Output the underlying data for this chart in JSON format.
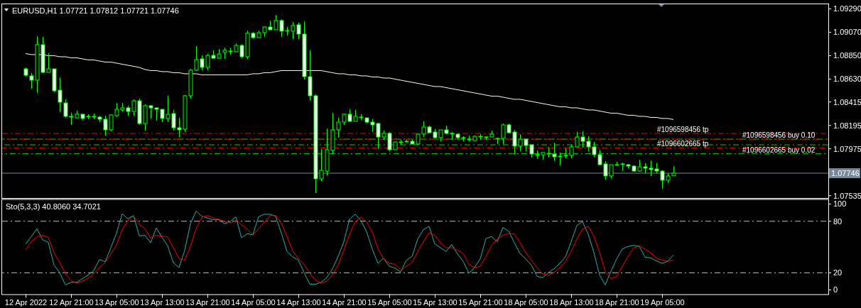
{
  "chart_data": [
    {
      "type": "candlestick",
      "title": "EURUSD,H1 1.07721 1.07812 1.07721 1.07746",
      "color": "#00ff00",
      "categories": [
        null,
        null,
        null,
        null,
        null,
        null,
        null,
        null,
        null,
        null,
        null,
        null,
        null,
        null,
        null,
        null,
        null,
        null,
        null,
        null,
        null,
        null,
        null,
        null,
        null,
        null,
        null,
        null,
        null,
        null,
        null,
        null,
        null,
        null,
        null,
        null,
        null,
        null,
        null,
        null,
        null,
        null,
        null,
        null,
        null,
        null,
        null,
        null,
        null,
        null,
        null,
        null,
        null,
        null,
        null,
        null,
        null,
        null,
        null,
        null,
        null,
        null,
        null,
        null,
        null,
        null,
        null,
        null,
        null,
        null,
        null,
        null,
        null,
        null,
        null,
        null,
        null,
        null,
        null,
        null,
        null,
        null,
        null,
        null,
        null,
        null,
        null,
        null,
        null,
        null,
        null,
        null,
        null,
        null,
        null,
        null,
        null,
        null,
        null,
        null,
        null,
        null,
        null,
        null,
        null,
        null,
        null,
        null,
        null,
        null,
        null,
        null,
        null,
        null,
        null
      ],
      "ohlc": [
        [
          1.08726,
          1.0874,
          1.08653,
          1.08666
        ],
        [
          1.0866,
          1.08686,
          1.0854,
          1.0862
        ],
        [
          1.0862,
          1.09033,
          1.085,
          1.08953
        ],
        [
          1.08953,
          1.09026,
          1.08686,
          1.08693
        ],
        [
          1.08693,
          1.08873,
          1.08693,
          1.08726
        ],
        [
          1.08726,
          1.08726,
          1.08506,
          1.0852
        ],
        [
          1.08526,
          1.08646,
          1.0832,
          1.08413
        ],
        [
          1.08406,
          1.0844,
          1.08266,
          1.0828
        ],
        [
          1.0828,
          1.08313,
          1.082,
          1.08273
        ],
        [
          1.08266,
          1.08333,
          1.08266,
          1.083
        ],
        [
          1.083,
          1.083,
          1.0824,
          1.0826
        ],
        [
          1.0828,
          1.083,
          1.08253,
          1.0828
        ],
        [
          1.0828,
          1.08306,
          1.08253,
          1.0828
        ],
        [
          1.08273,
          1.08286,
          1.08226,
          1.08253
        ],
        [
          1.08253,
          1.08286,
          1.081,
          1.08153
        ],
        [
          1.08153,
          1.083,
          1.0814,
          1.08293
        ],
        [
          1.08286,
          1.08406,
          1.08273,
          1.08346
        ],
        [
          1.0834,
          1.08406,
          1.08326,
          1.0836
        ],
        [
          1.0836,
          1.0838,
          1.08286,
          1.08326
        ],
        [
          1.08326,
          1.0844,
          1.08286,
          1.08426
        ],
        [
          1.08426,
          1.08446,
          1.082,
          1.08213
        ],
        [
          1.08213,
          1.08393,
          1.08146,
          1.0838
        ],
        [
          1.0838,
          1.08386,
          1.0826,
          1.0836
        ],
        [
          1.0836,
          1.0836,
          1.0824,
          1.08346
        ],
        [
          1.08346,
          1.08346,
          1.08226,
          1.0826
        ],
        [
          1.0826,
          1.08473,
          1.08226,
          1.083
        ],
        [
          1.08306,
          1.0834,
          1.08146,
          1.08173
        ],
        [
          1.08173,
          1.08266,
          1.08086,
          1.08153
        ],
        [
          1.0816,
          1.0848,
          1.08133,
          1.08473
        ],
        [
          1.08473,
          1.08726,
          1.08446,
          1.08713
        ],
        [
          1.08713,
          1.0894,
          1.08706,
          1.08813
        ],
        [
          1.0882,
          1.08853,
          1.08713,
          1.0874
        ],
        [
          1.0874,
          1.08866,
          1.08713,
          1.08853
        ],
        [
          1.08853,
          1.089,
          1.08826,
          1.08826
        ],
        [
          1.08826,
          1.08913,
          1.0882,
          1.08866
        ],
        [
          1.0888,
          1.08926,
          1.0882,
          1.089
        ],
        [
          1.08893,
          1.08926,
          1.0886,
          1.08893
        ],
        [
          1.08886,
          1.08966,
          1.08886,
          1.08946
        ],
        [
          1.08946,
          1.0896,
          1.08826,
          1.0884
        ],
        [
          1.0884,
          1.09086,
          1.0882,
          1.0906
        ],
        [
          1.0906,
          1.09073,
          1.09006,
          1.0902
        ],
        [
          1.0902,
          1.09086,
          1.0902,
          1.09066
        ],
        [
          1.09066,
          1.09126,
          1.09026,
          1.0912
        ],
        [
          1.0912,
          1.0918,
          1.09093,
          1.09093
        ],
        [
          1.09093,
          1.09233,
          1.09093,
          1.0918
        ],
        [
          1.0918,
          1.09193,
          1.09026,
          1.0908
        ],
        [
          1.09086,
          1.0912,
          1.0904,
          1.09086
        ],
        [
          1.0908,
          1.09166,
          1.09006,
          1.09133
        ],
        [
          1.0914,
          1.0916,
          1.09006,
          1.09053
        ],
        [
          1.09053,
          1.09173,
          1.08626,
          1.08653
        ],
        [
          1.08653,
          1.089,
          1.08426,
          1.08473
        ],
        [
          1.08473,
          1.08486,
          1.0756,
          1.07693
        ],
        [
          1.07693,
          1.07973,
          1.07673,
          1.07773
        ],
        [
          1.07766,
          1.08166,
          1.07726,
          1.07966
        ],
        [
          1.0796,
          1.08313,
          1.07926,
          1.08153
        ],
        [
          1.08153,
          1.08266,
          1.0808,
          1.08226
        ],
        [
          1.08226,
          1.08306,
          1.082,
          1.083
        ],
        [
          1.083,
          1.08346,
          1.08226,
          1.08233
        ],
        [
          1.08233,
          1.0834,
          1.08233,
          1.0828
        ],
        [
          1.08273,
          1.083,
          1.08246,
          1.08273
        ],
        [
          1.08266,
          1.08266,
          1.08213,
          1.08226
        ],
        [
          1.08226,
          1.08253,
          1.08133,
          1.082
        ],
        [
          1.08213,
          1.0822,
          1.07973,
          1.08086
        ],
        [
          1.08086,
          1.08146,
          1.0806,
          1.0812
        ],
        [
          1.0812,
          1.08133,
          1.07953,
          1.07966
        ],
        [
          1.07966,
          1.0804,
          1.07966,
          1.0804
        ],
        [
          1.0804,
          1.0806,
          1.08013,
          1.0804
        ],
        [
          1.08046,
          1.0806,
          1.08033,
          1.08046
        ],
        [
          1.08046,
          1.0806,
          1.08013,
          1.0802
        ],
        [
          1.0802,
          1.0812,
          1.08013,
          1.08113
        ],
        [
          1.08113,
          1.08233,
          1.08086,
          1.0818
        ],
        [
          1.0818,
          1.08193,
          1.0812,
          1.08126
        ],
        [
          1.08133,
          1.0816,
          1.08073,
          1.0808
        ],
        [
          1.0808,
          1.08153,
          1.08046,
          1.08153
        ],
        [
          1.08153,
          1.08193,
          1.08113,
          1.0812
        ],
        [
          1.0812,
          1.08133,
          1.0806,
          1.0812
        ],
        [
          1.08113,
          1.0812,
          1.0806,
          1.0808
        ],
        [
          1.0808,
          1.08093,
          1.08046,
          1.0808
        ],
        [
          1.08066,
          1.081,
          1.08046,
          1.08066
        ],
        [
          1.08053,
          1.081,
          1.08053,
          1.08093
        ],
        [
          1.08093,
          1.08113,
          1.0806,
          1.08093
        ],
        [
          1.08086,
          1.08093,
          1.0806,
          1.08086
        ],
        [
          1.08086,
          1.08146,
          1.08086,
          1.08113
        ],
        [
          1.08073,
          1.0808,
          1.0802,
          1.08073
        ],
        [
          1.08073,
          1.08213,
          1.0802,
          1.082
        ],
        [
          1.082,
          1.08213,
          1.0812,
          1.08126
        ],
        [
          1.08133,
          1.08153,
          1.07926,
          1.08
        ],
        [
          1.08,
          1.08113,
          1.07953,
          1.08066
        ],
        [
          1.08066,
          1.08073,
          1.07953,
          1.08006
        ],
        [
          1.08013,
          1.08013,
          1.07893,
          1.07926
        ],
        [
          1.0792,
          1.0796,
          1.0788,
          1.0792
        ],
        [
          1.0792,
          1.0794,
          1.07873,
          1.0794
        ],
        [
          1.07933,
          1.07993,
          1.07893,
          1.07933
        ],
        [
          1.07926,
          1.08033,
          1.0786,
          1.079
        ],
        [
          1.07906,
          1.0794,
          1.0782,
          1.07906
        ],
        [
          1.07913,
          1.0798,
          1.07886,
          1.07913
        ],
        [
          1.07913,
          1.08013,
          1.07886,
          1.07993
        ],
        [
          1.07993,
          1.08133,
          1.07993,
          1.08086
        ],
        [
          1.08086,
          1.0814,
          1.07986,
          1.08046
        ],
        [
          1.08046,
          1.08093,
          1.07953,
          1.07993
        ],
        [
          1.07993,
          1.0804,
          1.079,
          1.0792
        ],
        [
          1.0792,
          1.07966,
          1.0782,
          1.07826
        ],
        [
          1.07833,
          1.0786,
          1.07686,
          1.0772
        ],
        [
          1.0772,
          1.07826,
          1.077,
          1.07826
        ],
        [
          1.07826,
          1.07853,
          1.0782,
          1.07826
        ],
        [
          1.07833,
          1.07846,
          1.07766,
          1.07833
        ],
        [
          1.07826,
          1.07833,
          1.07793,
          1.07813
        ],
        [
          1.07813,
          1.0782,
          1.0776,
          1.07766
        ],
        [
          1.07766,
          1.07873,
          1.0776,
          1.07806
        ],
        [
          1.07806,
          1.0784,
          1.07746,
          1.07793
        ],
        [
          1.07793,
          1.07866,
          1.0772,
          1.0778
        ],
        [
          1.07786,
          1.0784,
          1.07746,
          1.07766
        ],
        [
          1.07766,
          1.07773,
          1.076,
          1.0768
        ],
        [
          1.0768,
          1.07746,
          1.07653,
          1.0772
        ],
        [
          1.07721,
          1.07812,
          1.07721,
          1.07746
        ]
      ],
      "series": [
        {
          "type": "line",
          "color": "#fffde0",
          "values": [
            1.0887,
            1.0886,
            1.0886,
            1.0886,
            1.0885,
            1.0885,
            1.0884,
            1.0884,
            1.0883,
            1.0883,
            1.0882,
            1.0881,
            1.0881,
            1.088,
            1.0879,
            1.0879,
            1.0878,
            1.0877,
            1.0876,
            1.0875,
            1.0874,
            1.0872,
            1.0871,
            1.0871,
            1.087,
            1.087,
            1.0869,
            1.0869,
            1.0868,
            1.0868,
            1.0868,
            1.0867,
            1.0867,
            1.0867,
            1.0867,
            1.0867,
            1.0867,
            1.0867,
            1.0867,
            1.0867,
            1.0868,
            1.0868,
            1.0869,
            1.0869,
            1.087,
            1.0871,
            1.0871,
            1.0871,
            1.0871,
            1.0871,
            1.0871,
            1.0871,
            1.0871,
            1.087,
            1.0869,
            1.0868,
            1.0868,
            1.0867,
            1.0867,
            1.0866,
            1.0866,
            1.0865,
            1.0865,
            1.0864,
            1.0864,
            1.0863,
            1.0862,
            1.0861,
            1.086,
            1.0859,
            1.0858,
            1.0857,
            1.0856,
            1.0856,
            1.0855,
            1.0854,
            1.0853,
            1.0852,
            1.0851,
            1.085,
            1.0849,
            1.0848,
            1.0847,
            1.0847,
            1.0846,
            1.0845,
            1.0844,
            1.0844,
            1.0843,
            1.0842,
            1.0841,
            1.084,
            1.0839,
            1.0838,
            1.0837,
            1.0837,
            1.0836,
            1.0836,
            1.0835,
            1.0834,
            1.0834,
            1.0833,
            1.0832,
            1.0831,
            1.0831,
            1.083,
            1.0829,
            1.0829,
            1.0828,
            1.0828,
            1.0827,
            1.0827,
            1.0826,
            1.0826,
            1.0825
          ]
        }
      ],
      "ylim": [
        1.07513,
        1.09333
      ],
      "yticks": [
        {
          "value": 1.0929,
          "label": "1.09290"
        },
        {
          "value": 1.0907,
          "label": "1.09070"
        },
        {
          "value": 1.0885,
          "label": "1.08850"
        },
        {
          "value": 1.0863,
          "label": "1.08630"
        },
        {
          "value": 1.08415,
          "label": "1.08415"
        },
        {
          "value": 1.08195,
          "label": "1.08195"
        },
        {
          "value": 1.07975,
          "label": "1.07975"
        },
        {
          "value": 1.07535,
          "label": "1.07535"
        }
      ],
      "ref_lines": [
        {
          "axis": "y",
          "value": 1.0812,
          "label": "#1096598456 tp",
          "color": "#ff0000",
          "line_style": "dashed"
        },
        {
          "axis": "y",
          "value": 1.08066,
          "label": "#1096598456 buy 0.10",
          "color": "#00cc00",
          "line_style": "dashed"
        },
        {
          "axis": "y",
          "value": 1.08066,
          "label": null,
          "color": "#ff0000",
          "line_style": "dashed"
        },
        {
          "axis": "y",
          "value": 1.08013,
          "label": null,
          "color": "#00cc00",
          "line_style": "dashed"
        },
        {
          "axis": "y",
          "value": 1.07984,
          "label": "#1096602665 tp",
          "color": "#ff0000",
          "line_style": "dashed"
        },
        {
          "axis": "y",
          "value": 1.07929,
          "label": "#1096602665 buy 0.02",
          "color": "#00cc00",
          "line_style": "dashed"
        },
        {
          "axis": "y",
          "value": 1.07746,
          "label": "1.07746",
          "color": "#778899",
          "line_style": "solid"
        }
      ]
    },
    {
      "type": "line",
      "title": "Sto(5,3,3) 40.8060 34.7021",
      "categories": [
        "12 Apr 2022",
        null,
        null,
        null,
        null,
        null,
        null,
        null,
        "12 Apr 21:00",
        null,
        null,
        null,
        null,
        null,
        null,
        null,
        "13 Apr 05:00",
        null,
        null,
        null,
        null,
        null,
        null,
        null,
        "13 Apr 13:00",
        null,
        null,
        null,
        null,
        null,
        null,
        null,
        "13 Apr 21:00",
        null,
        null,
        null,
        null,
        null,
        null,
        null,
        "14 Apr 05:00",
        null,
        null,
        null,
        null,
        null,
        null,
        null,
        "14 Apr 13:00",
        null,
        null,
        null,
        null,
        null,
        null,
        null,
        "14 Apr 21:00",
        null,
        null,
        null,
        null,
        null,
        null,
        null,
        "15 Apr 05:00",
        null,
        null,
        null,
        null,
        null,
        null,
        null,
        "15 Apr 13:00",
        null,
        null,
        null,
        null,
        null,
        null,
        null,
        "15 Apr 21:00",
        null,
        null,
        null,
        null,
        null,
        null,
        null,
        "18 Apr 05:00",
        null,
        null,
        null,
        null,
        null,
        null,
        null,
        "18 Apr 13:00",
        null,
        null,
        null,
        null,
        null,
        null,
        null,
        "18 Apr 21:00",
        null,
        null,
        null,
        null,
        null,
        null,
        null,
        "19 Apr 05:00",
        null,
        null
      ],
      "series": [
        {
          "color": "#20b2aa",
          "values": [
            53.5,
            62.1,
            71.3,
            58.4,
            55.5,
            29,
            20.3,
            5.9,
            8.8,
            8.8,
            13.1,
            17.4,
            22.6,
            35.6,
            32.7,
            49.1,
            66.4,
            88.7,
            82.9,
            86.6,
            63,
            63.6,
            54.9,
            72.2,
            61.5,
            51.4,
            31.8,
            26.1,
            46.3,
            77.1,
            91.8,
            85.8,
            83.7,
            81.7,
            81.7,
            77.1,
            79.4,
            85.2,
            60.7,
            65.6,
            64.1,
            85.2,
            88.1,
            88.1,
            85.8,
            66.4,
            44.8,
            38.5,
            34.7,
            20.3,
            6.7,
            6.7,
            8.8,
            14.5,
            24.6,
            39,
            56.3,
            82.3,
            88.1,
            80.9,
            67.9,
            47.7,
            31,
            37,
            27.5,
            25.5,
            20.9,
            34.7,
            39,
            59.2,
            70.2,
            74.2,
            53.5,
            49.1,
            44.8,
            52.9,
            41.9,
            33.3,
            19.4,
            26.1,
            36.2,
            59.8,
            62.1,
            56.3,
            72.8,
            68.5,
            54.9,
            42.5,
            36.2,
            28.9,
            16,
            14.2,
            20.3,
            24.6,
            31,
            38.5,
            56.3,
            75.1,
            79.4,
            65,
            43.4,
            17.4,
            5.9,
            21.7,
            36.2,
            47.7,
            50.6,
            52,
            50.6,
            38.2,
            37.3,
            33.9,
            31,
            33.3,
            40.8
          ]
        },
        {
          "color": "#ff0000",
          "values": [
            46.3,
            56.3,
            62.1,
            63.6,
            61.3,
            43.4,
            31.8,
            18.8,
            10.8,
            7.9,
            10.2,
            13.7,
            18.8,
            26.1,
            31.8,
            41.9,
            52,
            70.2,
            80.9,
            86.1,
            76.5,
            71.3,
            60.7,
            63.6,
            62.7,
            61.5,
            49.1,
            36.7,
            34.7,
            50.6,
            71.3,
            84.6,
            86.6,
            83.7,
            82.3,
            80,
            78,
            80.9,
            76,
            70.8,
            64.1,
            71.3,
            78.8,
            86.6,
            86.6,
            78,
            62.1,
            45.4,
            36.2,
            29.8,
            19.4,
            11.4,
            7.9,
            10.2,
            17.4,
            28.9,
            46.3,
            65,
            79.4,
            84.6,
            79.4,
            67.9,
            47.7,
            36.2,
            31,
            29.8,
            23.2,
            27.5,
            31.8,
            44.8,
            56.3,
            66.4,
            63.6,
            55,
            49.1,
            49.1,
            46.3,
            42.5,
            29.8,
            26.1,
            27.5,
            39,
            52,
            59.2,
            63.6,
            65.9,
            65,
            54.9,
            43.4,
            34.7,
            26.1,
            18.8,
            16.8,
            20.3,
            26.1,
            33.3,
            44.8,
            59.2,
            70.8,
            74.2,
            62.7,
            43.4,
            21.7,
            13.1,
            15.4,
            27.5,
            39,
            49.1,
            51.2,
            47.7,
            43.4,
            37,
            34.7,
            33.3,
            34.7
          ]
        }
      ],
      "ylim": [
        -5,
        105
      ],
      "yticks": [
        0,
        20,
        80,
        100
      ],
      "ref_lines": [
        {
          "axis": "y",
          "value": 80,
          "label": null,
          "color": "#c0c0c0",
          "line_style": "dashed"
        },
        {
          "axis": "y",
          "value": 20,
          "label": null,
          "color": "#c0c0c0",
          "line_style": "dashed"
        }
      ]
    }
  ]
}
